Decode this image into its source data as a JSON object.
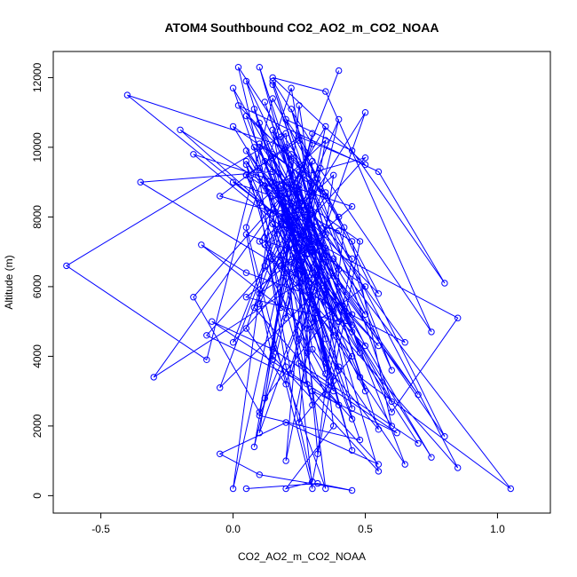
{
  "chart_data": {
    "type": "line",
    "title": "ATOM4 Southbound CO2_AO2_m_CO2_NOAA",
    "xlabel": "CO2_AO2_m_CO2_NOAA",
    "ylabel": "Altitude (m)",
    "xlim": [
      -0.68,
      1.2
    ],
    "ylim": [
      -500,
      12750
    ],
    "xticks": [
      -0.5,
      0.0,
      0.5,
      1.0
    ],
    "xtick_labels": [
      "-0.5",
      "0.0",
      "0.5",
      "1.0"
    ],
    "yticks": [
      0,
      2000,
      4000,
      6000,
      8000,
      10000,
      12000
    ],
    "ytick_labels": [
      "0",
      "2000",
      "4000",
      "6000",
      "8000",
      "10000",
      "12000"
    ],
    "grid": false,
    "legend": "none",
    "series_color": "#0000ff",
    "marker": "open-circle",
    "series": [
      {
        "x": [
          0.05,
          0.32,
          0.45,
          0.1,
          -0.05,
          0.2,
          0.55,
          0.3,
          0.62,
          0.15,
          -0.08,
          0.4,
          0.25,
          0.7,
          0.35,
          0.05,
          -0.12,
          0.28,
          0.5,
          0.18,
          0.85,
          0.6,
          0.22,
          0.0,
          0.38,
          1.05,
          0.48,
          0.12,
          0.3,
          -0.2,
          0.26,
          0.42,
          0.65,
          0.1,
          0.33,
          0.02,
          0.55,
          0.8,
          0.45,
          0.2,
          0.75,
          0.35,
          0.15,
          0.5,
          0.25,
          -0.05,
          0.4,
          0.6,
          0.28,
          0.85,
          0.18,
          0.45,
          -0.15,
          0.3,
          0.7,
          0.1,
          0.55,
          0.35,
          0.0,
          0.22,
          0.48,
          0.15,
          0.38,
          0.8,
          0.25,
          0.05,
          0.45,
          0.6,
          0.3,
          0.12,
          0.5,
          -0.1,
          0.28,
          0.2,
          -0.63,
          -0.1,
          0.15,
          0.4,
          0.25,
          0.55,
          0.35,
          0.1,
          0.3,
          0.5,
          0.05,
          0.75,
          0.2,
          -0.05,
          0.4,
          0.15,
          0.28,
          0.6,
          0.22,
          0.35,
          0.05,
          0.45,
          0.18,
          0.3,
          0.1,
          0.4,
          0.65,
          0.25,
          0.05,
          0.35,
          0.15,
          -0.35,
          0.3,
          0.1,
          0.48,
          0.2,
          0.38,
          0.0,
          0.25,
          0.55,
          0.15,
          0.32,
          0.08,
          0.45,
          0.22,
          0.3,
          0.12,
          0.4,
          0.18,
          0.35,
          0.28,
          0.05,
          0.25,
          0.45,
          0.2,
          0.35,
          0.1,
          0.55,
          0.3,
          0.15,
          0.4,
          0.25,
          0.5,
          0.05,
          0.3,
          -0.4,
          0.2,
          0.35,
          0.1,
          0.25,
          0.45,
          0.15,
          0.3,
          0.0,
          0.4,
          0.2,
          0.35,
          0.05,
          0.28,
          0.5,
          0.22,
          0.12,
          0.38,
          0.18,
          0.45,
          0.25,
          0.08,
          0.33,
          0.15,
          0.4,
          0.28,
          0.2,
          0.35,
          0.1,
          0.45,
          0.25,
          0.3,
          0.15,
          0.38,
          0.22,
          0.05,
          0.3,
          0.18,
          -0.3,
          0.25,
          0.4,
          0.1,
          0.35,
          0.2,
          0.5,
          0.12,
          0.3,
          0.25,
          0.15,
          0.05,
          0.35,
          0.2,
          0.3,
          -0.15,
          0.1,
          0.25,
          0.4,
          0.15,
          0.3,
          0.05,
          0.2,
          0.35,
          0.1,
          0.25,
          0.45,
          0.18,
          0.3,
          0.0,
          0.15,
          0.28,
          0.38,
          0.12,
          0.22,
          0.32,
          0.08,
          0.2,
          0.4,
          0.15,
          0.3,
          0.05,
          0.25,
          0.35,
          0.1,
          0.2,
          0.3,
          0.48,
          0.18,
          0.28,
          0.38,
          0.12,
          0.22,
          0.32,
          0.42,
          0.02,
          0.15,
          0.25,
          0.35,
          0.45,
          0.08,
          0.18,
          0.28,
          0.38,
          0.2,
          0.3
        ],
        "y": [
          200,
          350,
          150,
          600,
          1200,
          2100,
          900,
          3000,
          1800,
          4200,
          5000,
          2600,
          3800,
          1500,
          5600,
          6400,
          7200,
          4800,
          6000,
          7800,
          5100,
          2400,
          8400,
          9000,
          6800,
          200,
          3400,
          9600,
          8100,
          10500,
          7400,
          5300,
          4400,
          10100,
          8800,
          11200,
          9300,
          6100,
          9900,
          10800,
          4700,
          11600,
          12000,
          9500,
          10300,
          8600,
          7600,
          3600,
          9100,
          800,
          6600,
          8300,
          9800,
          7000,
          2900,
          9400,
          5800,
          8700,
          10600,
          7900,
          4100,
          11800,
          6300,
          1700,
          10200,
          9200,
          7300,
          2000,
          5500,
          8900,
          9700,
          4600,
          3200,
          10400,
          6600,
          3900,
          11400,
          8000,
          6900,
          4300,
          5900,
          10700,
          7700,
          5200,
          9600,
          1100,
          8200,
          3100,
          6500,
          9000,
          7100,
          2700,
          11100,
          7500,
          5700,
          4900,
          8500,
          6200,
          10000,
          3700,
          900,
          8700,
          11900,
          4500,
          9300,
          9000,
          6000,
          2300,
          1600,
          7800,
          3300,
          11700,
          8400,
          700,
          4000,
          9100,
          5400,
          2200,
          6700,
          7400,
          11300,
          5000,
          8100,
          3500,
          6400,
          10900,
          9500,
          2500,
          7900,
          5600,
          12300,
          1900,
          4200,
          10500,
          6000,
          8800,
          3000,
          9900,
          7200,
          11500,
          10000,
          8600,
          5800,
          6600,
          1300,
          9700,
          7000,
          4400,
          12200,
          8300,
          3800,
          9200,
          6200,
          11000,
          7600,
          2800,
          5300,
          10300,
          4700,
          8900,
          1400,
          9400,
          6800,
          3600,
          8000,
          5100,
          10600,
          7300,
          4000,
          2100,
          6400,
          9800,
          4600,
          11700,
          7700,
          200,
          8500,
          3400,
          6100,
          10800,
          5500,
          200,
          9000,
          4300,
          7200,
          8700,
          11200,
          3900,
          7500,
          6700,
          1000,
          9600,
          5700,
          2400,
          8200,
          6500,
          11900,
          10100,
          4800,
          3200,
          7100,
          1800,
          9300,
          5200,
          6900,
          10400,
          200,
          8600,
          4100,
          9200,
          7400,
          3500,
          6300,
          11100,
          8000,
          5000,
          7800,
          2600,
          9500,
          6000,
          10200,
          8400,
          3700,
          400,
          7300,
          8900,
          5900,
          3000,
          6600,
          9800,
          1200,
          7700,
          12300,
          8100,
          4500,
          2900,
          6800,
          10000,
          5400,
          8300,
          2000,
          200,
          400
        ]
      }
    ]
  }
}
